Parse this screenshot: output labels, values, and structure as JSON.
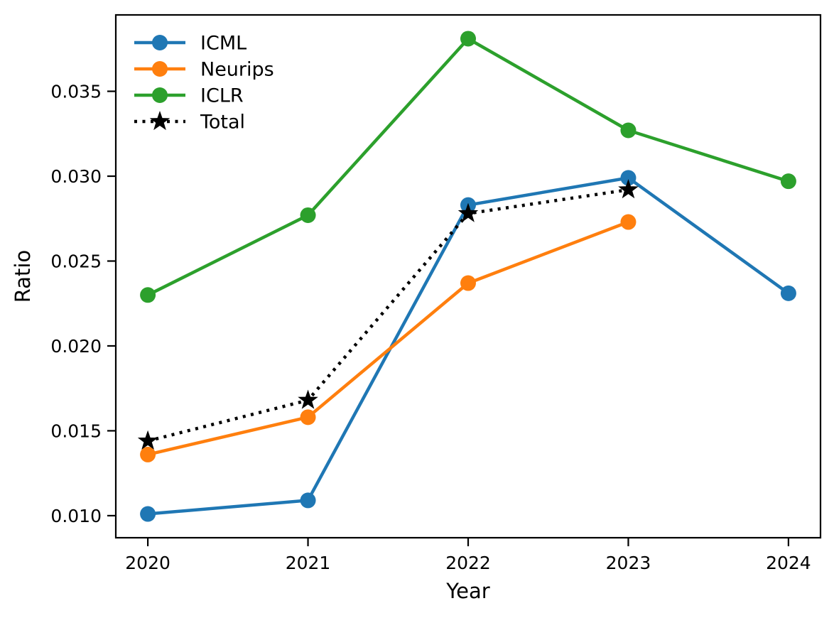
{
  "chart_data": {
    "type": "line",
    "title": "",
    "xlabel": "Year",
    "ylabel": "Ratio",
    "x": [
      2020,
      2021,
      2022,
      2023,
      2024
    ],
    "xticks": [
      {
        "value": 2020,
        "label": "2020"
      },
      {
        "value": 2021,
        "label": "2021"
      },
      {
        "value": 2022,
        "label": "2022"
      },
      {
        "value": 2023,
        "label": "2023"
      },
      {
        "value": 2024,
        "label": "2024"
      }
    ],
    "yticks": [
      {
        "value": 0.01,
        "label": "0.010"
      },
      {
        "value": 0.015,
        "label": "0.015"
      },
      {
        "value": 0.02,
        "label": "0.020"
      },
      {
        "value": 0.025,
        "label": "0.025"
      },
      {
        "value": 0.03,
        "label": "0.030"
      },
      {
        "value": 0.035,
        "label": "0.035"
      }
    ],
    "xlim": [
      2019.8,
      2024.2
    ],
    "ylim": [
      0.0087,
      0.0395
    ],
    "grid": false,
    "legend_position": "upper-left",
    "legend_frame": false,
    "axis_color": "#000000",
    "background": "#ffffff",
    "series": [
      {
        "name": "ICML",
        "color": "#1f77b4",
        "marker": "circle",
        "linestyle": "solid",
        "values": [
          0.0101,
          0.0109,
          0.0283,
          0.0299,
          0.0231
        ]
      },
      {
        "name": "Neurips",
        "color": "#ff7f0e",
        "marker": "circle",
        "linestyle": "solid",
        "values": [
          0.0136,
          0.0158,
          0.0237,
          0.0273,
          null
        ]
      },
      {
        "name": "ICLR",
        "color": "#2ca02c",
        "marker": "circle",
        "linestyle": "solid",
        "values": [
          0.023,
          0.0277,
          0.0381,
          0.0327,
          0.0297
        ]
      },
      {
        "name": "Total",
        "color": "#000000",
        "marker": "star",
        "linestyle": "dotted",
        "values": [
          0.0144,
          0.0168,
          0.0278,
          0.0292,
          null
        ]
      }
    ]
  }
}
